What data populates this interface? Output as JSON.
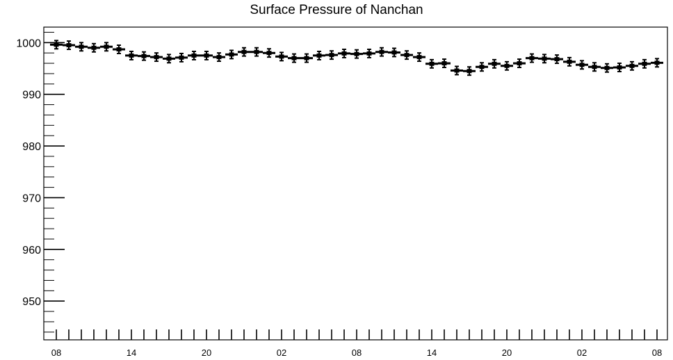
{
  "chart_data": {
    "type": "scatter",
    "title": "Surface Pressure of Nanchan",
    "xlabel": "",
    "ylabel": "",
    "ylim": [
      942.5,
      1003
    ],
    "y_ticks": [
      950,
      960,
      970,
      980,
      990,
      1000
    ],
    "y_tick_labels": [
      "950",
      "960",
      "970",
      "980",
      "990",
      "1000"
    ],
    "x_tick_labels": [
      "08",
      "14",
      "20",
      "02",
      "08",
      "14",
      "20",
      "02",
      "08"
    ],
    "x_hours_start": "08",
    "error_bar": 0.8,
    "grid": false,
    "series": [
      {
        "name": "",
        "values": [
          999.6,
          999.5,
          999.2,
          999.0,
          999.2,
          998.7,
          997.5,
          997.4,
          997.2,
          996.9,
          997.1,
          997.5,
          997.5,
          997.2,
          997.7,
          998.2,
          998.2,
          998.0,
          997.3,
          997.0,
          997.0,
          997.5,
          997.6,
          997.9,
          997.8,
          997.9,
          998.2,
          998.1,
          997.6,
          997.2,
          995.9,
          996.0,
          994.6,
          994.5,
          995.3,
          995.9,
          995.5,
          996.0,
          997.0,
          996.9,
          996.8,
          996.3,
          995.7,
          995.3,
          995.1,
          995.2,
          995.5,
          995.9,
          996.1
        ]
      }
    ],
    "colors": {
      "marker": "#000000",
      "axis": "#000000",
      "background": "#ffffff"
    }
  }
}
